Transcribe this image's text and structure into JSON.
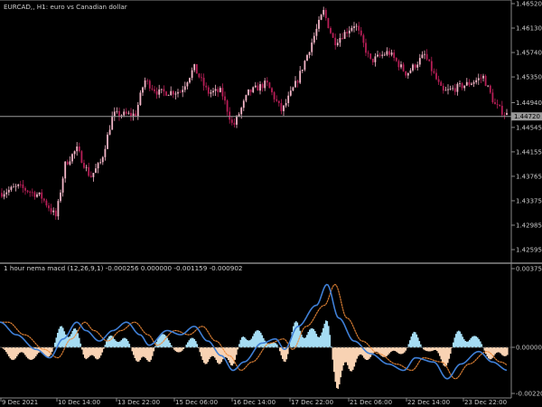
{
  "main_title": "EURCAD,, H1:  euro vs Canadian dollar",
  "price_axis": [
    "1.46520",
    "1.46130",
    "1.45740",
    "1.45350",
    "1.44940",
    "1.44545",
    "1.44155",
    "1.43765",
    "1.43375",
    "1.42985",
    "1.42595"
  ],
  "price_axis_values": [
    1.4652,
    1.4613,
    1.4574,
    1.4535,
    1.4494,
    1.44545,
    1.44155,
    1.43765,
    1.43375,
    1.42985,
    1.42595
  ],
  "current_price": "1.44720",
  "current_price_value": 1.4472,
  "indicator_title": "1 hour nema macd (12,26,9,1) -0.000256 0.000000 -0.001159 -0.000902",
  "indicator_axis": [
    "0.003755",
    "0.000000",
    "-0.002201"
  ],
  "indicator_axis_values": [
    0.003755,
    0.0,
    -0.002201
  ],
  "time_axis": [
    "9 Dec 2021",
    "10 Dec 14:00",
    "13 Dec 22:00",
    "15 Dec 06:00",
    "16 Dec 14:00",
    "17 Dec 22:00",
    "21 Dec 06:00",
    "22 Dec 14:00",
    "23 Dec 22:00"
  ],
  "colors": {
    "background": "#000000",
    "bull_candle": "#f4b6c8",
    "bear_candle": "#b81e57",
    "histogram_positive": "#a5dcf3",
    "histogram_negative": "#f8d2b3",
    "macd_line": "#3f7fd6",
    "signal_line": "#ee8a39",
    "grid_line": "#9a9a9a"
  }
}
